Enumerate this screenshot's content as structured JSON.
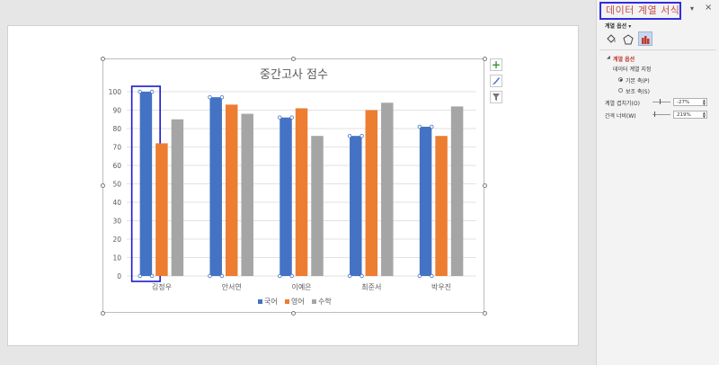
{
  "pane": {
    "title": "데이터 계열 서식",
    "options_dropdown": "계열 옵션 ▾",
    "section_label": "계열 옵션",
    "plot_on_label": "데이터 계열 지정",
    "primary_axis": "기본 축(P)",
    "secondary_axis": "보조 축(S)",
    "overlap_label": "계열 겹치기(O)",
    "overlap_value": "-27%",
    "gap_label": "간격 너비(W)",
    "gap_value": "219%",
    "pin_icon": "▾",
    "close_icon": "×",
    "icons": [
      "fill-line-icon",
      "effects-icon",
      "series-options-icon"
    ]
  },
  "chart_data": {
    "type": "bar",
    "title": "중간고사 점수",
    "categories": [
      "김정우",
      "안서연",
      "이예은",
      "최준서",
      "박우진"
    ],
    "series": [
      {
        "name": "국어",
        "color": "#4472c4",
        "values": [
          100,
          97,
          86,
          76,
          81
        ]
      },
      {
        "name": "영어",
        "color": "#ed7d31",
        "values": [
          72,
          93,
          91,
          90,
          76
        ]
      },
      {
        "name": "수학",
        "color": "#a5a5a5",
        "values": [
          85,
          88,
          76,
          94,
          92
        ]
      }
    ],
    "yticks": [
      "0",
      "10",
      "20",
      "30",
      "40",
      "50",
      "60",
      "70",
      "80",
      "90",
      "100"
    ],
    "ylim": [
      0,
      100
    ],
    "grid": true,
    "legend": "bottom",
    "selected_series": "국어",
    "selected_point_category": "김정우"
  },
  "chart_tools": [
    "plus-icon",
    "brush-icon",
    "filter-icon"
  ]
}
